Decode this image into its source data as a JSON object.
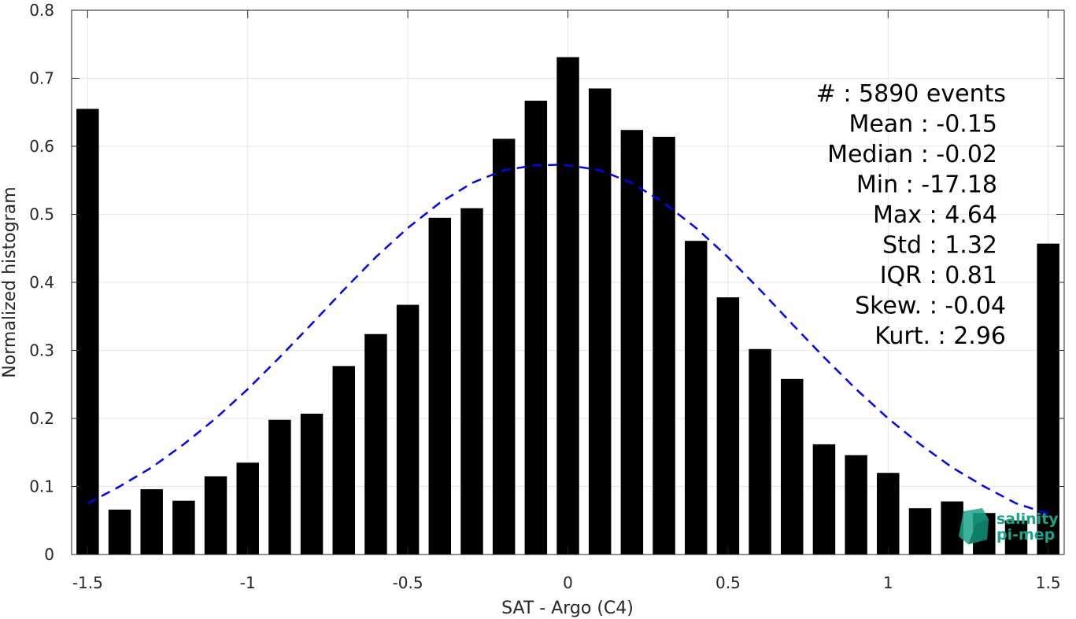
{
  "chart_data": {
    "type": "bar",
    "xlabel": "SAT - Argo (C4)",
    "ylabel": "Normalized histogram",
    "xlim": [
      -1.55,
      1.55
    ],
    "ylim": [
      0,
      0.8
    ],
    "x_ticks": [
      -1.5,
      -1,
      -0.5,
      0,
      0.5,
      1,
      1.5
    ],
    "x_tick_labels": [
      "-1.5",
      "-1",
      "-0.5",
      "0",
      "0.5",
      "1",
      "1.5"
    ],
    "y_ticks": [
      0,
      0.1,
      0.2,
      0.3,
      0.4,
      0.5,
      0.6,
      0.7,
      0.8
    ],
    "y_tick_labels": [
      "0",
      "0.1",
      "0.2",
      "0.3",
      "0.4",
      "0.5",
      "0.6",
      "0.7",
      "0.8"
    ],
    "grid": true,
    "bar_color": "#000000",
    "fit_color": "#0000ff",
    "x": [
      -1.5,
      -1.4,
      -1.3,
      -1.2,
      -1.1,
      -1.0,
      -0.9,
      -0.8,
      -0.7,
      -0.6,
      -0.5,
      -0.4,
      -0.3,
      -0.2,
      -0.1,
      0.0,
      0.1,
      0.2,
      0.3,
      0.4,
      0.5,
      0.6,
      0.7,
      0.8,
      0.9,
      1.0,
      1.1,
      1.2,
      1.3,
      1.4,
      1.5
    ],
    "values": [
      0.655,
      0.066,
      0.096,
      0.079,
      0.115,
      0.135,
      0.198,
      0.207,
      0.277,
      0.324,
      0.367,
      0.495,
      0.509,
      0.611,
      0.667,
      0.731,
      0.685,
      0.624,
      0.614,
      0.461,
      0.378,
      0.302,
      0.258,
      0.162,
      0.146,
      0.12,
      0.068,
      0.078,
      0.061,
      0.05,
      0.457
    ],
    "fit": {
      "type": "gaussian",
      "x": [
        -1.5,
        -1.4,
        -1.3,
        -1.2,
        -1.1,
        -1.0,
        -0.9,
        -0.8,
        -0.7,
        -0.6,
        -0.5,
        -0.4,
        -0.3,
        -0.2,
        -0.1,
        -0.02,
        0.0,
        0.1,
        0.2,
        0.3,
        0.4,
        0.5,
        0.6,
        0.7,
        0.8,
        0.9,
        1.0,
        1.1,
        1.2,
        1.3,
        1.4,
        1.5
      ],
      "y": [
        0.075,
        0.1,
        0.128,
        0.162,
        0.2,
        0.243,
        0.29,
        0.339,
        0.389,
        0.437,
        0.48,
        0.517,
        0.546,
        0.565,
        0.572,
        0.573,
        0.572,
        0.565,
        0.546,
        0.517,
        0.48,
        0.437,
        0.389,
        0.339,
        0.29,
        0.243,
        0.2,
        0.162,
        0.128,
        0.1,
        0.075,
        0.06
      ]
    },
    "stats": [
      "#  : 5890 events",
      "Mean : -0.15",
      "Median : -0.02",
      "Min : -17.18",
      "Max : 4.64",
      "Std : 1.32",
      "IQR : 0.81",
      "Skew. : -0.04",
      "Kurt. : 2.96"
    ]
  },
  "logo": {
    "line1": "salinity",
    "line2": "pi-mep",
    "color": "#1aa58a"
  }
}
